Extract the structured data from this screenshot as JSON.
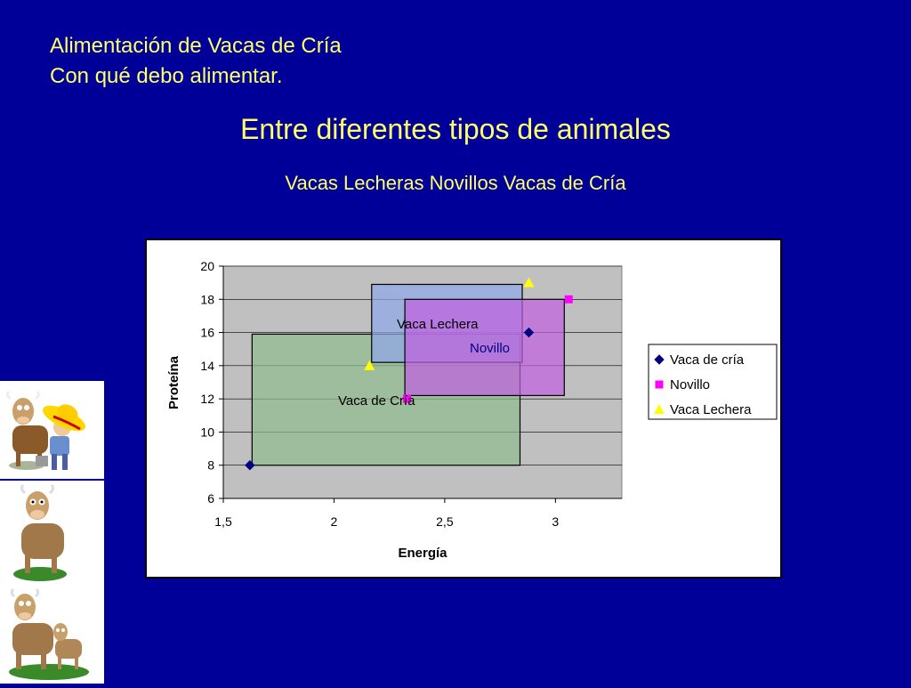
{
  "slide": {
    "title_line1": "Alimentación de Vacas de Cría",
    "title_line2": "Con qué debo alimentar.",
    "heading": "Entre diferentes tipos de animales",
    "subheading": "Vacas Lecheras Novillos Vacas de Cría"
  },
  "images": [
    "cow-farmer-illustration",
    "standing-cow-illustration",
    "cow-and-calf-illustration"
  ],
  "chart_data": {
    "type": "scatter",
    "xlabel": "Energía",
    "ylabel": "Proteína",
    "xlim": [
      1.5,
      3.3
    ],
    "ylim": [
      6,
      20
    ],
    "x_ticks": [
      "1,5",
      "2",
      "2,5",
      "3"
    ],
    "x_tick_values": [
      1.5,
      2,
      2.5,
      3
    ],
    "y_ticks": [
      6,
      8,
      10,
      12,
      14,
      16,
      18,
      20
    ],
    "grid": true,
    "legend_position": "right",
    "plot_background": "#c0c0c0",
    "series": [
      {
        "name": "Vaca de cría",
        "marker": "diamond",
        "color": "#000080",
        "points": [
          [
            1.62,
            8
          ],
          [
            2.88,
            16
          ]
        ]
      },
      {
        "name": "Novillo",
        "marker": "square",
        "color": "#ff00ff",
        "points": [
          [
            2.33,
            12
          ],
          [
            3.06,
            18
          ]
        ]
      },
      {
        "name": "Vaca Lechera",
        "marker": "triangle",
        "color": "#ffff00",
        "points": [
          [
            2.16,
            14
          ],
          [
            2.88,
            19
          ]
        ]
      }
    ],
    "regions": [
      {
        "label": "Vaca de Cría",
        "x": [
          1.63,
          2.84
        ],
        "y": [
          8,
          15.9
        ],
        "fill": "#8fbc8f"
      },
      {
        "label": "Vaca Lechera",
        "x": [
          2.17,
          2.85
        ],
        "y": [
          14.2,
          18.9
        ],
        "fill": "#8fa8e8"
      },
      {
        "label": "Novillo",
        "x": [
          2.32,
          3.04
        ],
        "y": [
          12.2,
          18
        ],
        "fill": "#c060e0"
      }
    ]
  }
}
